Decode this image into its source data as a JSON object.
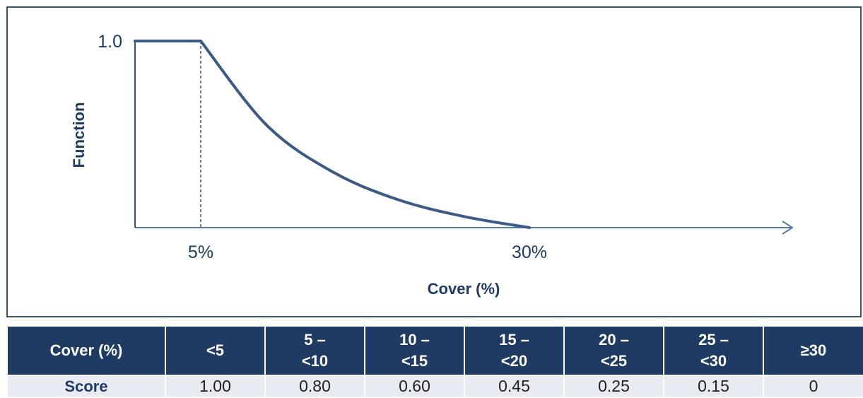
{
  "chart_data": {
    "type": "line",
    "xlabel": "Cover (%)",
    "ylabel": "Function",
    "x_tick_labels": [
      {
        "x": 5,
        "label": "5%"
      },
      {
        "x": 30,
        "label": "30%"
      }
    ],
    "y_tick_labels": [
      {
        "y": 1.0,
        "label": "1.0"
      }
    ],
    "xlim": [
      0,
      50
    ],
    "ylim": [
      0,
      1.0
    ],
    "grid": false,
    "legend": "none",
    "series": [
      {
        "x": [
          0,
          5,
          10,
          15,
          20,
          25,
          30
        ],
        "y": [
          1.0,
          1.0,
          0.55,
          0.3,
          0.15,
          0.06,
          0.0
        ]
      }
    ],
    "annotations": [
      "vertical dashed line at x = 5",
      "vertical line at x = 0 from y = 0 to y = 1.0",
      "x-axis drawn with arrowhead"
    ],
    "colors": {
      "line": "#3b5a86",
      "axis": "#5a7aa6",
      "text": "#1f3b63"
    }
  },
  "table": {
    "header_label": "Cover (%)",
    "row_label": "Score",
    "columns": [
      {
        "range_line1": "<5",
        "range_line2": "",
        "score": "1.00"
      },
      {
        "range_line1": "5 –",
        "range_line2": "<10",
        "score": "0.80"
      },
      {
        "range_line1": "10 –",
        "range_line2": "<15",
        "score": "0.60"
      },
      {
        "range_line1": "15 –",
        "range_line2": "<20",
        "score": "0.45"
      },
      {
        "range_line1": "20 –",
        "range_line2": "<25",
        "score": "0.25"
      },
      {
        "range_line1": "25 –",
        "range_line2": "<30",
        "score": "0.15"
      },
      {
        "range_line1": "≥30",
        "range_line2": "",
        "score": "0"
      }
    ],
    "colors": {
      "header_bg": "#1f3b63",
      "row_bg": "#e8ebf2"
    }
  }
}
